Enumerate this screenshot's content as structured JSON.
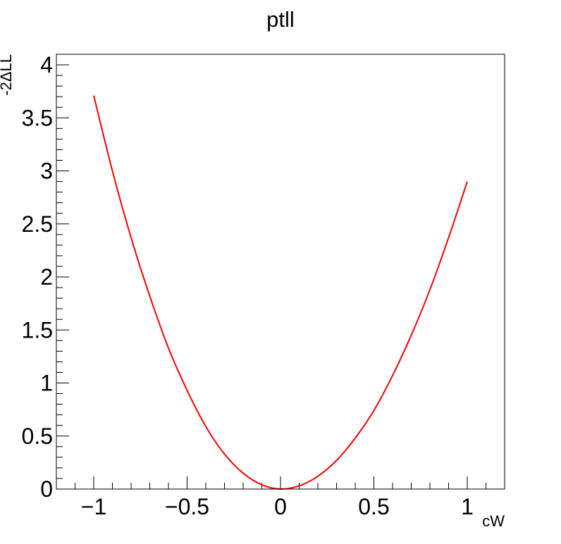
{
  "chart_data": {
    "type": "line",
    "title": "ptll",
    "xlabel": "cW",
    "ylabel": "-2ΔLL",
    "xlim": [
      -1.2,
      1.2
    ],
    "ylim": [
      0,
      4.1
    ],
    "x_ticks": [
      {
        "value": -1,
        "label": "−1"
      },
      {
        "value": -0.5,
        "label": "−0.5"
      },
      {
        "value": 0,
        "label": "0"
      },
      {
        "value": 0.5,
        "label": "0.5"
      },
      {
        "value": 1,
        "label": "1"
      }
    ],
    "y_ticks": [
      {
        "value": 0,
        "label": "0"
      },
      {
        "value": 0.5,
        "label": "0.5"
      },
      {
        "value": 1,
        "label": "1"
      },
      {
        "value": 1.5,
        "label": "1.5"
      },
      {
        "value": 2,
        "label": "2"
      },
      {
        "value": 2.5,
        "label": "2.5"
      },
      {
        "value": 3,
        "label": "3"
      },
      {
        "value": 3.5,
        "label": "3.5"
      },
      {
        "value": 4,
        "label": "4"
      }
    ],
    "grid": false,
    "series": [
      {
        "color": "#ff0000",
        "x": [
          -1.0,
          -0.9,
          -0.8,
          -0.7,
          -0.6,
          -0.5,
          -0.4,
          -0.3,
          -0.2,
          -0.1,
          0.0,
          0.1,
          0.2,
          0.3,
          0.4,
          0.5,
          0.6,
          0.7,
          0.8,
          0.9,
          1.0
        ],
        "y": [
          3.71,
          3.0,
          2.37,
          1.82,
          1.33,
          0.93,
          0.59,
          0.33,
          0.15,
          0.04,
          0.0,
          0.03,
          0.12,
          0.27,
          0.48,
          0.74,
          1.07,
          1.45,
          1.88,
          2.37,
          2.9
        ]
      }
    ]
  }
}
